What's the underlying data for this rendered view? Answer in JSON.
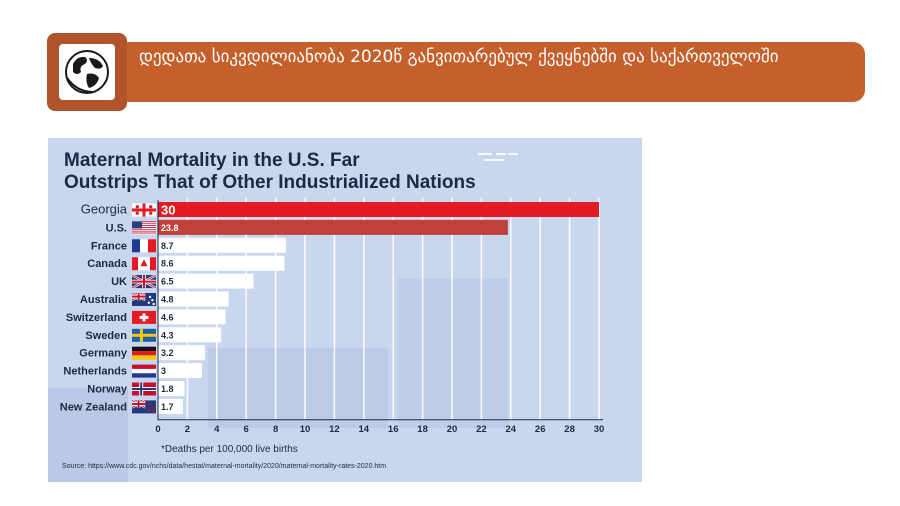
{
  "banner": {
    "title": "დედათა სიკვდილიანობა 2020წ განვითარებულ ქვეყნებში და საქართველოში",
    "logo_icon": "globe-icon",
    "bar_color": "#c5602c",
    "logo_box_color": "#b0552a"
  },
  "chart": {
    "title_line1": "Maternal Mortality in the U.S. Far",
    "title_line2": "Outstrips That of Other Industrialized Nations",
    "note": "*Deaths per 100,000 live births",
    "source": "Source: https://www.cdc.gov/nchs/data/hestat/maternal-mortality/2020/maternal-mortality-rates-2020.htm"
  },
  "chart_data": {
    "type": "bar",
    "orientation": "horizontal",
    "title": "Maternal Mortality in the U.S. Far Outstrips That of Other Industrialized Nations",
    "xlabel": "",
    "ylabel": "",
    "xlim": [
      0,
      30
    ],
    "xticks": [
      0,
      2,
      4,
      6,
      8,
      10,
      12,
      14,
      16,
      18,
      20,
      22,
      24,
      26,
      28,
      30
    ],
    "grid": true,
    "categories": [
      "Georgia",
      "U.S.",
      "France",
      "Canada",
      "UK",
      "Australia",
      "Switzerland",
      "Sweden",
      "Germany",
      "Netherlands",
      "Norway",
      "New Zealand"
    ],
    "values": [
      30,
      23.8,
      8.7,
      8.6,
      6.5,
      4.8,
      4.6,
      4.3,
      3.2,
      3,
      1.8,
      1.7
    ],
    "value_labels": [
      "30",
      "23.8",
      "8.7",
      "8.6",
      "6.5",
      "4.8",
      "4.6",
      "4.3",
      "3.2",
      "3",
      "1.8",
      "1.7"
    ],
    "flags": [
      "georgia-flag-icon",
      "us-flag-icon",
      "france-flag-icon",
      "canada-flag-icon",
      "uk-flag-icon",
      "australia-flag-icon",
      "switzerland-flag-icon",
      "sweden-flag-icon",
      "germany-flag-icon",
      "netherlands-flag-icon",
      "norway-flag-icon",
      "new-zealand-flag-icon"
    ],
    "colors": {
      "georgia": "#e31b23",
      "us": "#c0403a",
      "others": "#ffffff",
      "background": "#c8d6ee",
      "text": "#1e2a44"
    }
  }
}
